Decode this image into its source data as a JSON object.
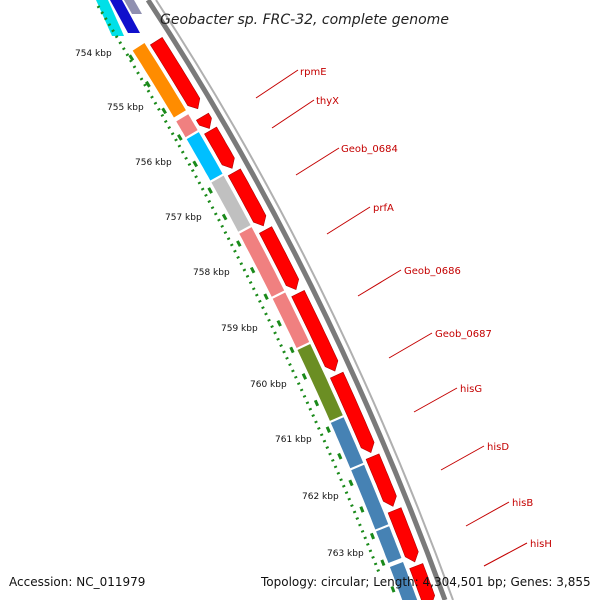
{
  "header": {
    "title": "Geobacter sp. FRC-32, complete genome"
  },
  "footer": {
    "accession": "Accession: NC_011979",
    "summary": "Topology: circular; Length: 4,304,501 bp; Genes: 3,855"
  },
  "ticks": [
    {
      "label": "754 kbp"
    },
    {
      "label": "755 kbp"
    },
    {
      "label": "756 kbp"
    },
    {
      "label": "757 kbp"
    },
    {
      "label": "758 kbp"
    },
    {
      "label": "759 kbp"
    },
    {
      "label": "760 kbp"
    },
    {
      "label": "761 kbp"
    },
    {
      "label": "762 kbp"
    },
    {
      "label": "763 kbp"
    }
  ],
  "gene_labels": [
    "rpmE",
    "thyX",
    "Geob_0684",
    "prfA",
    "Geob_0686",
    "Geob_0687",
    "hisG",
    "hisD",
    "hisB",
    "hisH"
  ],
  "colors": {
    "cds": "#ff0000",
    "backbone": "#808080",
    "dots": "#1a8a1a",
    "label": "#c40000",
    "cog": [
      "#ff8c00",
      "#f08080",
      "#00bfff",
      "#c0c0c0",
      "#f08080",
      "#f08080",
      "#6b8e23",
      "#4682b4",
      "#4682b4",
      "#4682b4",
      "#4682b4",
      "#4682b4"
    ]
  }
}
